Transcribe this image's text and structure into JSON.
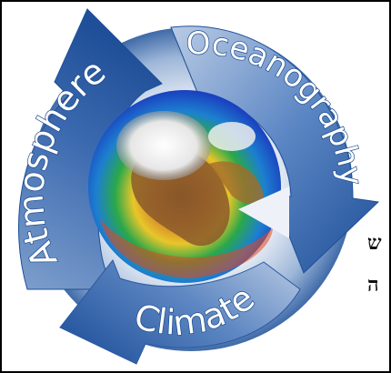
{
  "labels": {
    "atmosphere": "Atmosphere",
    "oceanography": "Oceanography",
    "climate": "Climate"
  },
  "side_glyphs": {
    "line1": "ש",
    "line2": "ה"
  },
  "colors": {
    "arrow_dark": "#1f4f98",
    "arrow_mid": "#4a7cc0",
    "arrow_light": "#c9d7ea",
    "text_fill": "#ffffff",
    "text_stroke": "#1b4b8c",
    "border": "#000000",
    "globe_ocean_deep": "#1a3fbf",
    "globe_ocean_warm": "#2aa84a",
    "globe_land": "#7a4a20",
    "globe_ice": "#f2f2f2",
    "globe_heat": "#e8461e"
  },
  "icons": {
    "cycle": "circular-arrows-icon",
    "globe": "earth-globe-icon"
  }
}
